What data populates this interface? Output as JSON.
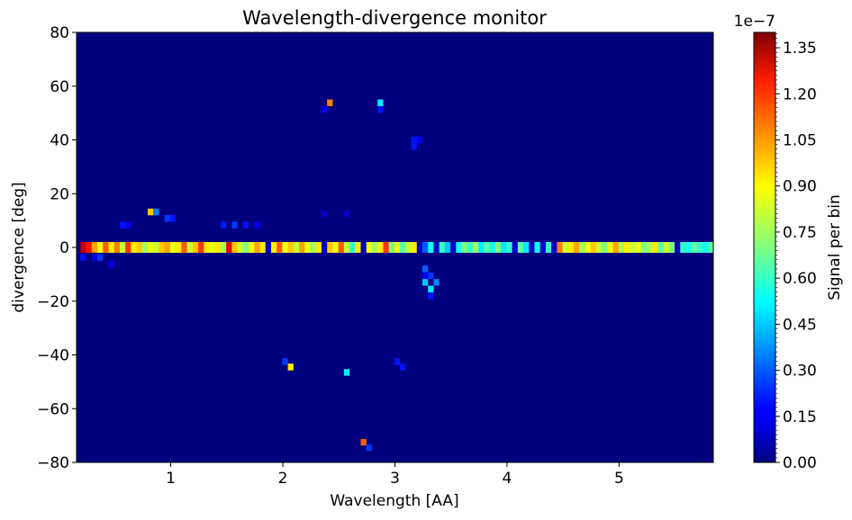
{
  "chart_data": {
    "type": "heatmap",
    "title": "Wavelength-divergence monitor",
    "xlabel": "Wavelength [AA]",
    "ylabel": "divergence [deg]",
    "xlim": [
      0.16,
      5.84
    ],
    "ylim": [
      -80,
      80
    ],
    "x_ticks": [
      1,
      2,
      3,
      4,
      5
    ],
    "x_tick_labels": [
      "1",
      "2",
      "3",
      "4",
      "5"
    ],
    "y_ticks": [
      -80,
      -60,
      -40,
      -20,
      0,
      20,
      40,
      60,
      80
    ],
    "y_tick_labels": [
      "−80",
      "−60",
      "−40",
      "−20",
      "0",
      "20",
      "40",
      "60",
      "80"
    ],
    "grid": false,
    "colormap": "jet",
    "colorbar": {
      "label": "Signal per bin",
      "range": [
        0,
        1.4e-07
      ],
      "offset_text": "1e−7",
      "ticks": [
        0,
        0.15,
        0.3,
        0.45,
        0.6,
        0.75,
        0.9,
        1.05,
        1.2,
        1.35
      ],
      "tick_labels": [
        "0.00",
        "0.15",
        "0.30",
        "0.45",
        "0.60",
        "0.75",
        "0.90",
        "1.05",
        "1.20",
        "1.35"
      ]
    },
    "background_value": 0,
    "main_band": {
      "y_range": [
        -2,
        2
      ],
      "description": "dense band of bins along divergence 0",
      "cells": [
        {
          "x": 0.22,
          "v": 1.3
        },
        {
          "x": 0.27,
          "v": 1.2
        },
        {
          "x": 0.32,
          "v": 1.0
        },
        {
          "x": 0.37,
          "v": 0.85
        },
        {
          "x": 0.42,
          "v": 1.1
        },
        {
          "x": 0.47,
          "v": 0.9
        },
        {
          "x": 0.52,
          "v": 1.05
        },
        {
          "x": 0.57,
          "v": 0.8
        },
        {
          "x": 0.62,
          "v": 1.15
        },
        {
          "x": 0.67,
          "v": 0.9
        },
        {
          "x": 0.72,
          "v": 0.95
        },
        {
          "x": 0.77,
          "v": 0.75
        },
        {
          "x": 0.82,
          "v": 0.85
        },
        {
          "x": 0.87,
          "v": 0.8
        },
        {
          "x": 0.92,
          "v": 0.95
        },
        {
          "x": 0.97,
          "v": 1.0
        },
        {
          "x": 1.02,
          "v": 0.85
        },
        {
          "x": 1.07,
          "v": 0.9
        },
        {
          "x": 1.12,
          "v": 1.1
        },
        {
          "x": 1.17,
          "v": 0.8
        },
        {
          "x": 1.22,
          "v": 0.95
        },
        {
          "x": 1.27,
          "v": 1.15
        },
        {
          "x": 1.32,
          "v": 0.9
        },
        {
          "x": 1.37,
          "v": 0.85
        },
        {
          "x": 1.42,
          "v": 0.9
        },
        {
          "x": 1.47,
          "v": 0.75
        },
        {
          "x": 1.52,
          "v": 1.25
        },
        {
          "x": 1.57,
          "v": 0.95
        },
        {
          "x": 1.62,
          "v": 0.8
        },
        {
          "x": 1.67,
          "v": 0.7
        },
        {
          "x": 1.72,
          "v": 0.85
        },
        {
          "x": 1.77,
          "v": 1.0
        },
        {
          "x": 1.82,
          "v": 0.9
        },
        {
          "x": 1.87,
          "v": 0.1
        },
        {
          "x": 1.92,
          "v": 0.9
        },
        {
          "x": 1.97,
          "v": 1.1
        },
        {
          "x": 2.02,
          "v": 0.85
        },
        {
          "x": 2.07,
          "v": 0.95
        },
        {
          "x": 2.12,
          "v": 0.8
        },
        {
          "x": 2.17,
          "v": 1.0
        },
        {
          "x": 2.22,
          "v": 0.85
        },
        {
          "x": 2.27,
          "v": 0.75
        },
        {
          "x": 2.32,
          "v": 0.9
        },
        {
          "x": 2.37,
          "v": 0.1
        },
        {
          "x": 2.42,
          "v": 0.95
        },
        {
          "x": 2.47,
          "v": 0.85
        },
        {
          "x": 2.52,
          "v": 1.1
        },
        {
          "x": 2.57,
          "v": 0.8
        },
        {
          "x": 2.62,
          "v": 0.6
        },
        {
          "x": 2.67,
          "v": 0.9
        },
        {
          "x": 2.72,
          "v": 0.1
        },
        {
          "x": 2.77,
          "v": 0.85
        },
        {
          "x": 2.82,
          "v": 0.75
        },
        {
          "x": 2.87,
          "v": 0.9
        },
        {
          "x": 2.92,
          "v": 1.15
        },
        {
          "x": 2.97,
          "v": 0.7
        },
        {
          "x": 3.02,
          "v": 0.85
        },
        {
          "x": 3.07,
          "v": 0.65
        },
        {
          "x": 3.12,
          "v": 0.8
        },
        {
          "x": 3.17,
          "v": 0.9
        },
        {
          "x": 3.22,
          "v": 0.1
        },
        {
          "x": 3.27,
          "v": 0.3
        },
        {
          "x": 3.32,
          "v": 0.55
        },
        {
          "x": 3.37,
          "v": 0.1
        },
        {
          "x": 3.42,
          "v": 0.6
        },
        {
          "x": 3.47,
          "v": 0.45
        },
        {
          "x": 3.52,
          "v": 0.1
        },
        {
          "x": 3.57,
          "v": 0.55
        },
        {
          "x": 3.62,
          "v": 0.7
        },
        {
          "x": 3.67,
          "v": 0.6
        },
        {
          "x": 3.72,
          "v": 0.75
        },
        {
          "x": 3.77,
          "v": 0.5
        },
        {
          "x": 3.82,
          "v": 0.65
        },
        {
          "x": 3.87,
          "v": 0.55
        },
        {
          "x": 3.92,
          "v": 0.7
        },
        {
          "x": 3.97,
          "v": 0.5
        },
        {
          "x": 4.02,
          "v": 0.6
        },
        {
          "x": 4.07,
          "v": 0.1
        },
        {
          "x": 4.12,
          "v": 0.65
        },
        {
          "x": 4.17,
          "v": 0.5
        },
        {
          "x": 4.22,
          "v": 0.1
        },
        {
          "x": 4.27,
          "v": 0.55
        },
        {
          "x": 4.32,
          "v": 0.1
        },
        {
          "x": 4.37,
          "v": 0.6
        },
        {
          "x": 4.42,
          "v": 0.1
        },
        {
          "x": 4.47,
          "v": 1.05
        },
        {
          "x": 4.52,
          "v": 0.8
        },
        {
          "x": 4.57,
          "v": 0.9
        },
        {
          "x": 4.62,
          "v": 1.0
        },
        {
          "x": 4.67,
          "v": 0.75
        },
        {
          "x": 4.72,
          "v": 0.85
        },
        {
          "x": 4.77,
          "v": 0.95
        },
        {
          "x": 4.82,
          "v": 0.8
        },
        {
          "x": 4.87,
          "v": 0.7
        },
        {
          "x": 4.92,
          "v": 0.85
        },
        {
          "x": 4.97,
          "v": 1.0
        },
        {
          "x": 5.02,
          "v": 0.75
        },
        {
          "x": 5.07,
          "v": 0.9
        },
        {
          "x": 5.12,
          "v": 0.8
        },
        {
          "x": 5.17,
          "v": 0.85
        },
        {
          "x": 5.22,
          "v": 0.7
        },
        {
          "x": 5.27,
          "v": 0.75
        },
        {
          "x": 5.32,
          "v": 0.9
        },
        {
          "x": 5.37,
          "v": 0.65
        },
        {
          "x": 5.42,
          "v": 0.8
        },
        {
          "x": 5.47,
          "v": 0.7
        },
        {
          "x": 5.52,
          "v": 0.1
        },
        {
          "x": 5.57,
          "v": 0.6
        },
        {
          "x": 5.62,
          "v": 0.55
        },
        {
          "x": 5.67,
          "v": 0.65
        },
        {
          "x": 5.72,
          "v": 0.6
        },
        {
          "x": 5.77,
          "v": 0.55
        },
        {
          "x": 5.82,
          "v": 0.65
        }
      ]
    },
    "scattered_bins": [
      {
        "x": 0.22,
        "y": -3.7,
        "v": 0.2
      },
      {
        "x": 0.32,
        "y": -3.7,
        "v": 0.15
      },
      {
        "x": 0.47,
        "y": -6.2,
        "v": 0.15
      },
      {
        "x": 0.37,
        "y": -3.7,
        "v": 0.25
      },
      {
        "x": 0.57,
        "y": 8.3,
        "v": 0.2
      },
      {
        "x": 0.62,
        "y": 8.3,
        "v": 0.15
      },
      {
        "x": 0.82,
        "y": 13.2,
        "v": 0.95
      },
      {
        "x": 0.87,
        "y": 13.2,
        "v": 0.35
      },
      {
        "x": 0.97,
        "y": 10.8,
        "v": 0.25
      },
      {
        "x": 1.02,
        "y": 10.8,
        "v": 0.2
      },
      {
        "x": 1.47,
        "y": 8.3,
        "v": 0.2
      },
      {
        "x": 1.57,
        "y": 8.3,
        "v": 0.25
      },
      {
        "x": 1.67,
        "y": 8.3,
        "v": 0.2
      },
      {
        "x": 1.77,
        "y": 8.3,
        "v": 0.15
      },
      {
        "x": 2.37,
        "y": 12.5,
        "v": 0.1
      },
      {
        "x": 2.57,
        "y": 12.5,
        "v": 0.1
      },
      {
        "x": 2.42,
        "y": 53.8,
        "v": 1.05
      },
      {
        "x": 2.37,
        "y": 51.3,
        "v": 0.15
      },
      {
        "x": 2.87,
        "y": 53.8,
        "v": 0.5
      },
      {
        "x": 2.87,
        "y": 51.3,
        "v": 0.2
      },
      {
        "x": 3.17,
        "y": 40.0,
        "v": 0.2
      },
      {
        "x": 3.22,
        "y": 40.0,
        "v": 0.15
      },
      {
        "x": 3.17,
        "y": 37.5,
        "v": 0.2
      },
      {
        "x": 3.27,
        "y": -8.0,
        "v": 0.3
      },
      {
        "x": 3.32,
        "y": -10.5,
        "v": 0.25
      },
      {
        "x": 3.27,
        "y": -13.0,
        "v": 0.45
      },
      {
        "x": 3.32,
        "y": -15.5,
        "v": 0.5
      },
      {
        "x": 3.37,
        "y": -13.0,
        "v": 0.35
      },
      {
        "x": 3.32,
        "y": -18.0,
        "v": 0.2
      },
      {
        "x": 3.27,
        "y": -10.5,
        "v": 0.15
      },
      {
        "x": 2.02,
        "y": -42.5,
        "v": 0.25
      },
      {
        "x": 2.07,
        "y": -44.5,
        "v": 0.9
      },
      {
        "x": 2.57,
        "y": -46.5,
        "v": 0.5
      },
      {
        "x": 3.02,
        "y": -42.5,
        "v": 0.2
      },
      {
        "x": 3.07,
        "y": -44.5,
        "v": 0.2
      },
      {
        "x": 2.72,
        "y": -72.5,
        "v": 1.1
      },
      {
        "x": 2.77,
        "y": -74.5,
        "v": 0.25
      }
    ]
  }
}
